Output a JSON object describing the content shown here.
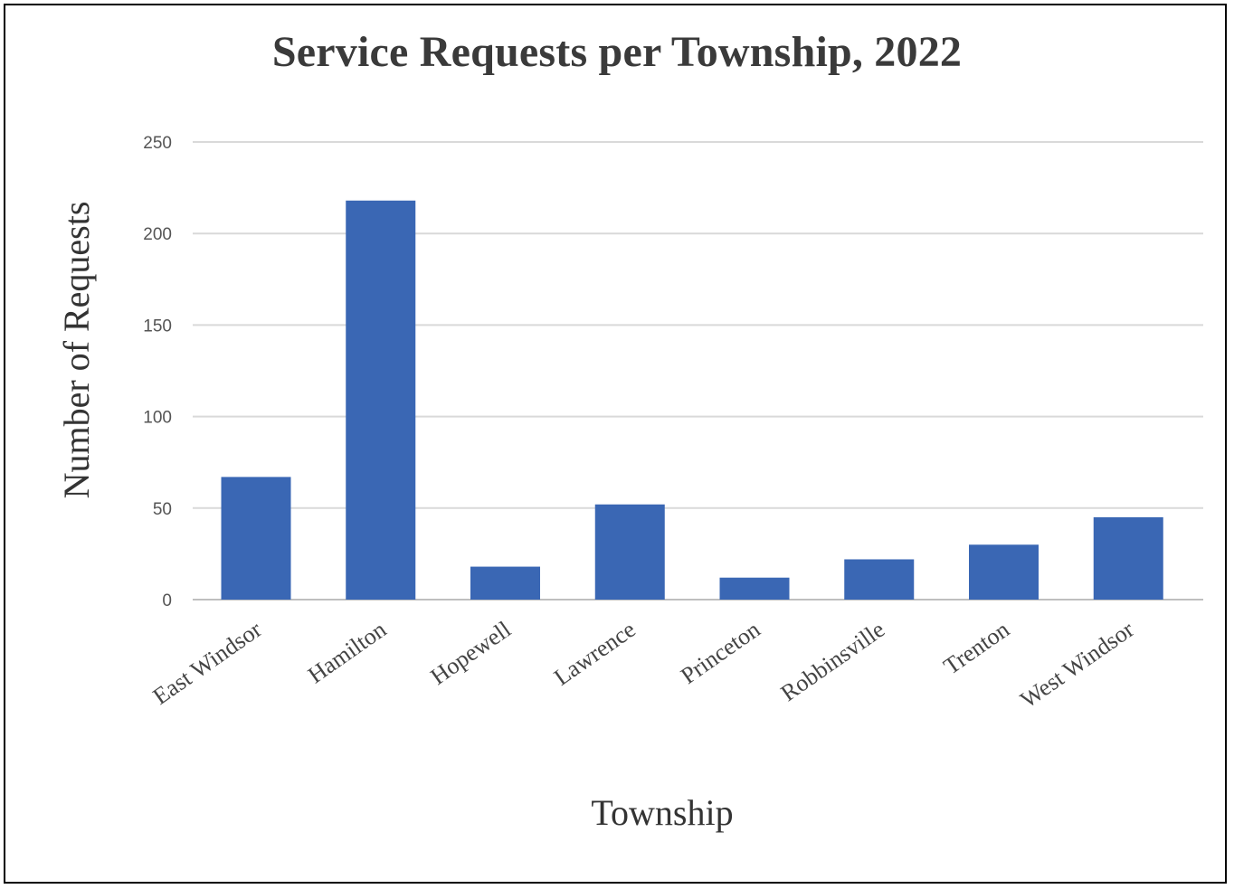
{
  "chart_data": {
    "type": "bar",
    "title": "Service Requests per Township, 2022",
    "xlabel": "Township",
    "ylabel": "Number of Requests",
    "categories": [
      "East Windsor",
      "Hamilton",
      "Hopewell",
      "Lawrence",
      "Princeton",
      "Robbinsville",
      "Trenton",
      "West Windsor"
    ],
    "values": [
      67,
      218,
      18,
      52,
      12,
      22,
      30,
      45
    ],
    "ylim": [
      0,
      250
    ],
    "yticks": [
      0,
      50,
      100,
      150,
      200,
      250
    ],
    "grid": true,
    "bar_color": "#3a67b4",
    "grid_color": "#d9d9d9"
  }
}
